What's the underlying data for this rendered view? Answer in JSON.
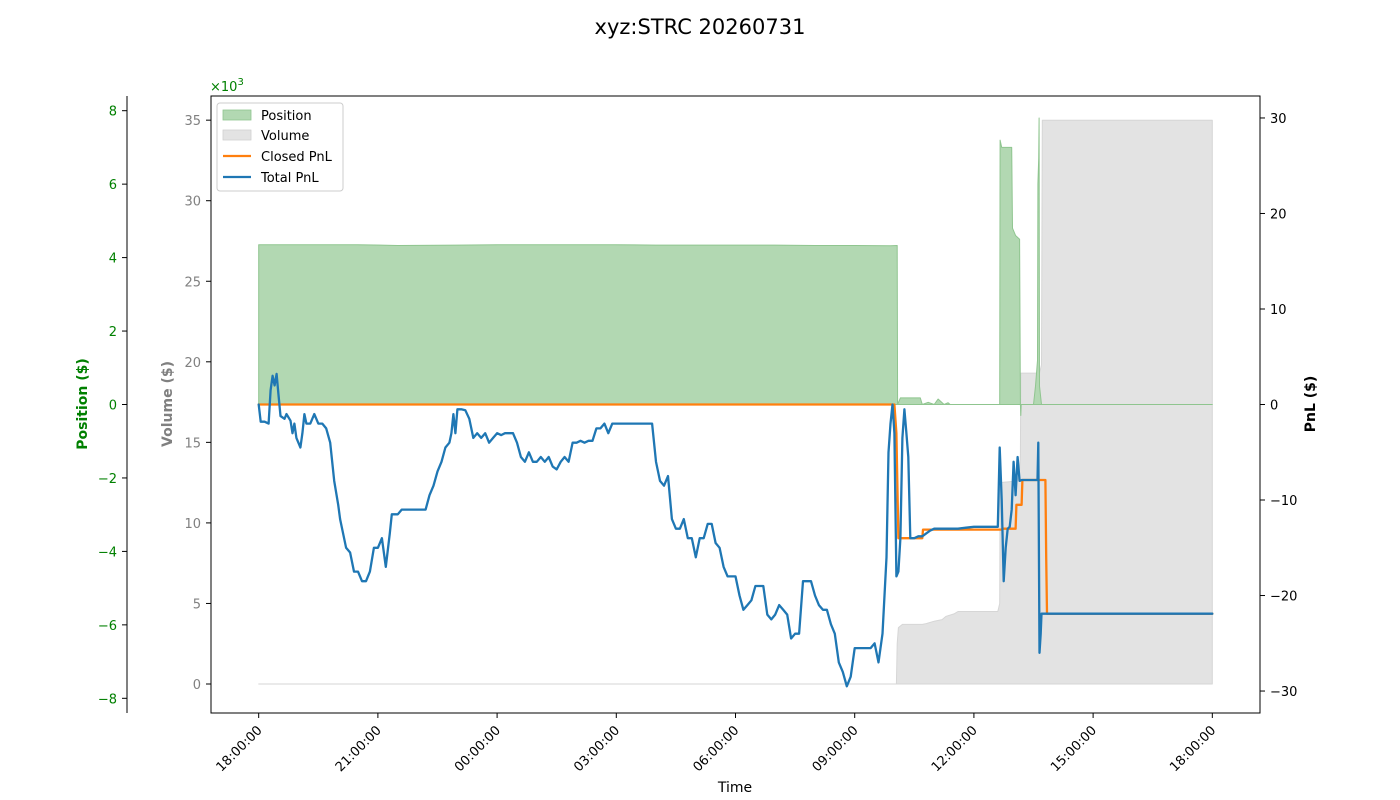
{
  "colors": {
    "position": "#008000",
    "position_fill": "#b2d8b2",
    "volume_axis": "#808080",
    "volume_fill": "#e3e3e3",
    "closed_pnl": "#ff7f0e",
    "total_pnl": "#1f77b4"
  },
  "chart_data": {
    "type": "line",
    "title": "xyz:STRC 20260731",
    "xlabel": "Time",
    "x_ticks": [
      "18:00:00",
      "21:00:00",
      "00:00:00",
      "03:00:00",
      "06:00:00",
      "09:00:00",
      "12:00:00",
      "15:00:00",
      "18:00:00"
    ],
    "x_range_hours": [
      -1.2,
      25.2
    ],
    "axes": {
      "position": {
        "label": "Position ($)",
        "range": [
          -8.4,
          8.4
        ],
        "ticks": [
          -8,
          -6,
          -4,
          -2,
          0,
          2,
          4,
          6,
          8
        ],
        "multiplier": "×10",
        "multiplier_exp": "3"
      },
      "volume": {
        "label": "Volume ($)",
        "range": [
          -1.8,
          36.5
        ],
        "ticks": [
          0,
          5,
          10,
          15,
          20,
          25,
          30,
          35
        ]
      },
      "pnl": {
        "label": "PnL ($)",
        "range": [
          -32.3,
          32.3
        ],
        "ticks": [
          -30,
          -20,
          -10,
          0,
          10,
          20,
          30
        ]
      }
    },
    "legend": {
      "placement": "upper-left",
      "entries": [
        "Position",
        "Volume",
        "Closed PnL",
        "Total PnL"
      ]
    },
    "series": [
      {
        "name": "Position",
        "axis": "position",
        "style": "fill",
        "points": [
          [
            0,
            0
          ],
          [
            0,
            4.35
          ],
          [
            0.5,
            4.35
          ],
          [
            1.5,
            4.35
          ],
          [
            2.5,
            4.35
          ],
          [
            3.5,
            4.33
          ],
          [
            5,
            4.34
          ],
          [
            6,
            4.35
          ],
          [
            7,
            4.35
          ],
          [
            8,
            4.35
          ],
          [
            9,
            4.35
          ],
          [
            10,
            4.34
          ],
          [
            11,
            4.34
          ],
          [
            12,
            4.34
          ],
          [
            13,
            4.34
          ],
          [
            14,
            4.33
          ],
          [
            15,
            4.33
          ],
          [
            15.9,
            4.32
          ],
          [
            16.07,
            4.33
          ],
          [
            16.08,
            0
          ],
          [
            16.15,
            0.18
          ],
          [
            16.65,
            0.18
          ],
          [
            16.7,
            0
          ],
          [
            16.85,
            0.06
          ],
          [
            17,
            0
          ],
          [
            17.1,
            0.15
          ],
          [
            17.25,
            0
          ],
          [
            17.35,
            0.05
          ],
          [
            17.4,
            0
          ],
          [
            18.65,
            0
          ],
          [
            18.66,
            7.2
          ],
          [
            18.7,
            7.0
          ],
          [
            18.95,
            7.0
          ],
          [
            18.97,
            4.8
          ],
          [
            19.05,
            4.6
          ],
          [
            19.15,
            4.5
          ],
          [
            19.17,
            0
          ],
          [
            19.18,
            -0.3
          ],
          [
            19.19,
            0
          ],
          [
            19.5,
            0
          ],
          [
            19.55,
            0.5
          ],
          [
            19.6,
            1.2
          ],
          [
            19.61,
            6.0
          ],
          [
            19.63,
            6.7
          ],
          [
            19.64,
            7.8
          ],
          [
            19.65,
            0.5
          ],
          [
            19.7,
            0
          ],
          [
            24,
            0
          ],
          [
            24,
            0
          ]
        ]
      },
      {
        "name": "Volume",
        "axis": "volume",
        "style": "fill",
        "points": [
          [
            0,
            0
          ],
          [
            16.0,
            0
          ],
          [
            16.05,
            0
          ],
          [
            16.07,
            2.5
          ],
          [
            16.1,
            3.5
          ],
          [
            16.2,
            3.7
          ],
          [
            16.7,
            3.7
          ],
          [
            16.8,
            3.75
          ],
          [
            17.0,
            3.9
          ],
          [
            17.2,
            4.0
          ],
          [
            17.3,
            4.2
          ],
          [
            17.5,
            4.35
          ],
          [
            17.6,
            4.5
          ],
          [
            18.5,
            4.5
          ],
          [
            18.6,
            4.5
          ],
          [
            18.65,
            5.0
          ],
          [
            18.66,
            12.5
          ],
          [
            19.1,
            12.6
          ],
          [
            19.15,
            13.3
          ],
          [
            19.17,
            14.2
          ],
          [
            19.18,
            19.3
          ],
          [
            19.65,
            19.3
          ],
          [
            19.7,
            19.8
          ],
          [
            19.72,
            35.0
          ],
          [
            24,
            35.0
          ],
          [
            24,
            0
          ]
        ]
      },
      {
        "name": "Closed PnL",
        "axis": "pnl",
        "style": "line",
        "points": [
          [
            0,
            0
          ],
          [
            16.0,
            0
          ],
          [
            16.05,
            -3.0
          ],
          [
            16.1,
            -14.0
          ],
          [
            16.7,
            -14.0
          ],
          [
            16.72,
            -13.1
          ],
          [
            18.7,
            -13.1
          ],
          [
            18.72,
            -13.0
          ],
          [
            19.05,
            -13.0
          ],
          [
            19.07,
            -10.5
          ],
          [
            19.2,
            -10.5
          ],
          [
            19.22,
            -7.9
          ],
          [
            19.8,
            -7.9
          ],
          [
            19.82,
            -16.0
          ],
          [
            19.84,
            -21.9
          ],
          [
            24,
            -21.9
          ]
        ]
      },
      {
        "name": "Total PnL",
        "axis": "pnl",
        "style": "line",
        "points": [
          [
            0,
            0
          ],
          [
            0.05,
            -1.8
          ],
          [
            0.15,
            -1.8
          ],
          [
            0.25,
            -2.0
          ],
          [
            0.3,
            1.5
          ],
          [
            0.35,
            3.0
          ],
          [
            0.4,
            2.0
          ],
          [
            0.45,
            3.2
          ],
          [
            0.5,
            1.0
          ],
          [
            0.55,
            -1.2
          ],
          [
            0.65,
            -1.5
          ],
          [
            0.7,
            -1.0
          ],
          [
            0.8,
            -1.7
          ],
          [
            0.85,
            -3.0
          ],
          [
            0.9,
            -2.0
          ],
          [
            0.95,
            -3.5
          ],
          [
            1.0,
            -4.0
          ],
          [
            1.05,
            -4.5
          ],
          [
            1.1,
            -3.0
          ],
          [
            1.15,
            -1.0
          ],
          [
            1.2,
            -2.0
          ],
          [
            1.3,
            -2.0
          ],
          [
            1.4,
            -1.0
          ],
          [
            1.5,
            -2.0
          ],
          [
            1.6,
            -2.0
          ],
          [
            1.7,
            -2.5
          ],
          [
            1.8,
            -4.0
          ],
          [
            1.9,
            -8.0
          ],
          [
            2.0,
            -10.5
          ],
          [
            2.05,
            -12.0
          ],
          [
            2.1,
            -13.0
          ],
          [
            2.2,
            -15.0
          ],
          [
            2.3,
            -15.5
          ],
          [
            2.4,
            -17.5
          ],
          [
            2.5,
            -17.5
          ],
          [
            2.6,
            -18.5
          ],
          [
            2.7,
            -18.5
          ],
          [
            2.8,
            -17.5
          ],
          [
            2.9,
            -15.0
          ],
          [
            3.0,
            -15.0
          ],
          [
            3.1,
            -14.0
          ],
          [
            3.2,
            -17.0
          ],
          [
            3.3,
            -13.5
          ],
          [
            3.35,
            -11.5
          ],
          [
            3.4,
            -11.5
          ],
          [
            3.5,
            -11.5
          ],
          [
            3.6,
            -11.0
          ],
          [
            3.7,
            -11.0
          ],
          [
            4.0,
            -11.0
          ],
          [
            4.2,
            -11.0
          ],
          [
            4.3,
            -9.5
          ],
          [
            4.4,
            -8.5
          ],
          [
            4.5,
            -7.0
          ],
          [
            4.6,
            -6.0
          ],
          [
            4.7,
            -4.5
          ],
          [
            4.8,
            -4.0
          ],
          [
            4.85,
            -3.0
          ],
          [
            4.9,
            -1.0
          ],
          [
            4.95,
            -3.0
          ],
          [
            5.0,
            -0.5
          ],
          [
            5.1,
            -0.5
          ],
          [
            5.2,
            -0.6
          ],
          [
            5.3,
            -1.5
          ],
          [
            5.4,
            -3.5
          ],
          [
            5.5,
            -3.0
          ],
          [
            5.6,
            -3.5
          ],
          [
            5.7,
            -3.0
          ],
          [
            5.8,
            -4.0
          ],
          [
            5.9,
            -3.5
          ],
          [
            6.0,
            -3.0
          ],
          [
            6.1,
            -3.2
          ],
          [
            6.2,
            -3.0
          ],
          [
            6.4,
            -3.0
          ],
          [
            6.5,
            -4.0
          ],
          [
            6.6,
            -5.5
          ],
          [
            6.7,
            -6.0
          ],
          [
            6.8,
            -5.0
          ],
          [
            6.9,
            -6.0
          ],
          [
            7.0,
            -6.0
          ],
          [
            7.1,
            -5.5
          ],
          [
            7.2,
            -6.0
          ],
          [
            7.3,
            -5.5
          ],
          [
            7.4,
            -6.5
          ],
          [
            7.5,
            -6.8
          ],
          [
            7.6,
            -6.0
          ],
          [
            7.7,
            -5.5
          ],
          [
            7.8,
            -6.0
          ],
          [
            7.9,
            -4.0
          ],
          [
            8.0,
            -4.0
          ],
          [
            8.1,
            -3.8
          ],
          [
            8.2,
            -4.0
          ],
          [
            8.3,
            -3.8
          ],
          [
            8.4,
            -3.8
          ],
          [
            8.5,
            -2.5
          ],
          [
            8.6,
            -2.5
          ],
          [
            8.7,
            -2.0
          ],
          [
            8.8,
            -3.0
          ],
          [
            8.9,
            -2.0
          ],
          [
            9.0,
            -2.0
          ],
          [
            9.2,
            -2.0
          ],
          [
            9.5,
            -2.0
          ],
          [
            9.9,
            -2.0
          ],
          [
            10.0,
            -6.0
          ],
          [
            10.1,
            -8.0
          ],
          [
            10.2,
            -8.5
          ],
          [
            10.3,
            -7.5
          ],
          [
            10.4,
            -12.0
          ],
          [
            10.5,
            -13.0
          ],
          [
            10.6,
            -13.0
          ],
          [
            10.7,
            -12.0
          ],
          [
            10.8,
            -14.0
          ],
          [
            10.9,
            -14.0
          ],
          [
            11.0,
            -16.0
          ],
          [
            11.1,
            -14.0
          ],
          [
            11.2,
            -14.0
          ],
          [
            11.3,
            -12.5
          ],
          [
            11.4,
            -12.5
          ],
          [
            11.5,
            -14.5
          ],
          [
            11.6,
            -15.0
          ],
          [
            11.7,
            -17.0
          ],
          [
            11.8,
            -18.0
          ],
          [
            11.9,
            -18.0
          ],
          [
            12.0,
            -18.0
          ],
          [
            12.1,
            -20.0
          ],
          [
            12.2,
            -21.5
          ],
          [
            12.3,
            -21.0
          ],
          [
            12.4,
            -20.5
          ],
          [
            12.5,
            -19.0
          ],
          [
            12.6,
            -19.0
          ],
          [
            12.7,
            -19.0
          ],
          [
            12.8,
            -22.0
          ],
          [
            12.9,
            -22.5
          ],
          [
            13.0,
            -22.0
          ],
          [
            13.1,
            -21.0
          ],
          [
            13.2,
            -21.5
          ],
          [
            13.3,
            -22.0
          ],
          [
            13.4,
            -24.5
          ],
          [
            13.5,
            -24.0
          ],
          [
            13.6,
            -24.0
          ],
          [
            13.7,
            -18.5
          ],
          [
            13.8,
            -18.5
          ],
          [
            13.9,
            -18.5
          ],
          [
            14.0,
            -20.0
          ],
          [
            14.1,
            -21.0
          ],
          [
            14.2,
            -21.5
          ],
          [
            14.3,
            -21.5
          ],
          [
            14.4,
            -23.0
          ],
          [
            14.5,
            -24.0
          ],
          [
            14.6,
            -27.0
          ],
          [
            14.7,
            -28.0
          ],
          [
            14.8,
            -29.5
          ],
          [
            14.9,
            -28.5
          ],
          [
            15.0,
            -25.5
          ],
          [
            15.2,
            -25.5
          ],
          [
            15.4,
            -25.5
          ],
          [
            15.5,
            -25.0
          ],
          [
            15.6,
            -27.0
          ],
          [
            15.7,
            -24.0
          ],
          [
            15.8,
            -16.0
          ],
          [
            15.85,
            -5.0
          ],
          [
            15.9,
            -2.0
          ],
          [
            15.95,
            0.0
          ],
          [
            16.0,
            -3.0
          ],
          [
            16.05,
            -18.0
          ],
          [
            16.1,
            -17.5
          ],
          [
            16.15,
            -14.0
          ],
          [
            16.2,
            -3.5
          ],
          [
            16.25,
            -0.5
          ],
          [
            16.3,
            -3.0
          ],
          [
            16.35,
            -5.5
          ],
          [
            16.4,
            -14.0
          ],
          [
            16.5,
            -14.0
          ],
          [
            16.6,
            -13.8
          ],
          [
            16.7,
            -13.8
          ],
          [
            16.8,
            -13.5
          ],
          [
            16.9,
            -13.2
          ],
          [
            17.0,
            -13.0
          ],
          [
            17.2,
            -13.0
          ],
          [
            17.4,
            -13.0
          ],
          [
            17.6,
            -13.0
          ],
          [
            17.8,
            -12.9
          ],
          [
            18.0,
            -12.8
          ],
          [
            18.3,
            -12.8
          ],
          [
            18.6,
            -12.8
          ],
          [
            18.65,
            -4.5
          ],
          [
            18.7,
            -10.0
          ],
          [
            18.75,
            -18.5
          ],
          [
            18.8,
            -15.0
          ],
          [
            18.85,
            -13.0
          ],
          [
            18.9,
            -12.8
          ],
          [
            18.95,
            -11.0
          ],
          [
            19.0,
            -6.0
          ],
          [
            19.05,
            -9.5
          ],
          [
            19.1,
            -5.5
          ],
          [
            19.15,
            -8.0
          ],
          [
            19.2,
            -7.9
          ],
          [
            19.3,
            -7.9
          ],
          [
            19.5,
            -7.9
          ],
          [
            19.6,
            -7.9
          ],
          [
            19.62,
            -4.0
          ],
          [
            19.65,
            -26.0
          ],
          [
            19.68,
            -24.0
          ],
          [
            19.7,
            -21.9
          ],
          [
            19.8,
            -21.9
          ],
          [
            20.5,
            -21.9
          ],
          [
            22.0,
            -21.9
          ],
          [
            24,
            -21.9
          ]
        ]
      }
    ]
  }
}
